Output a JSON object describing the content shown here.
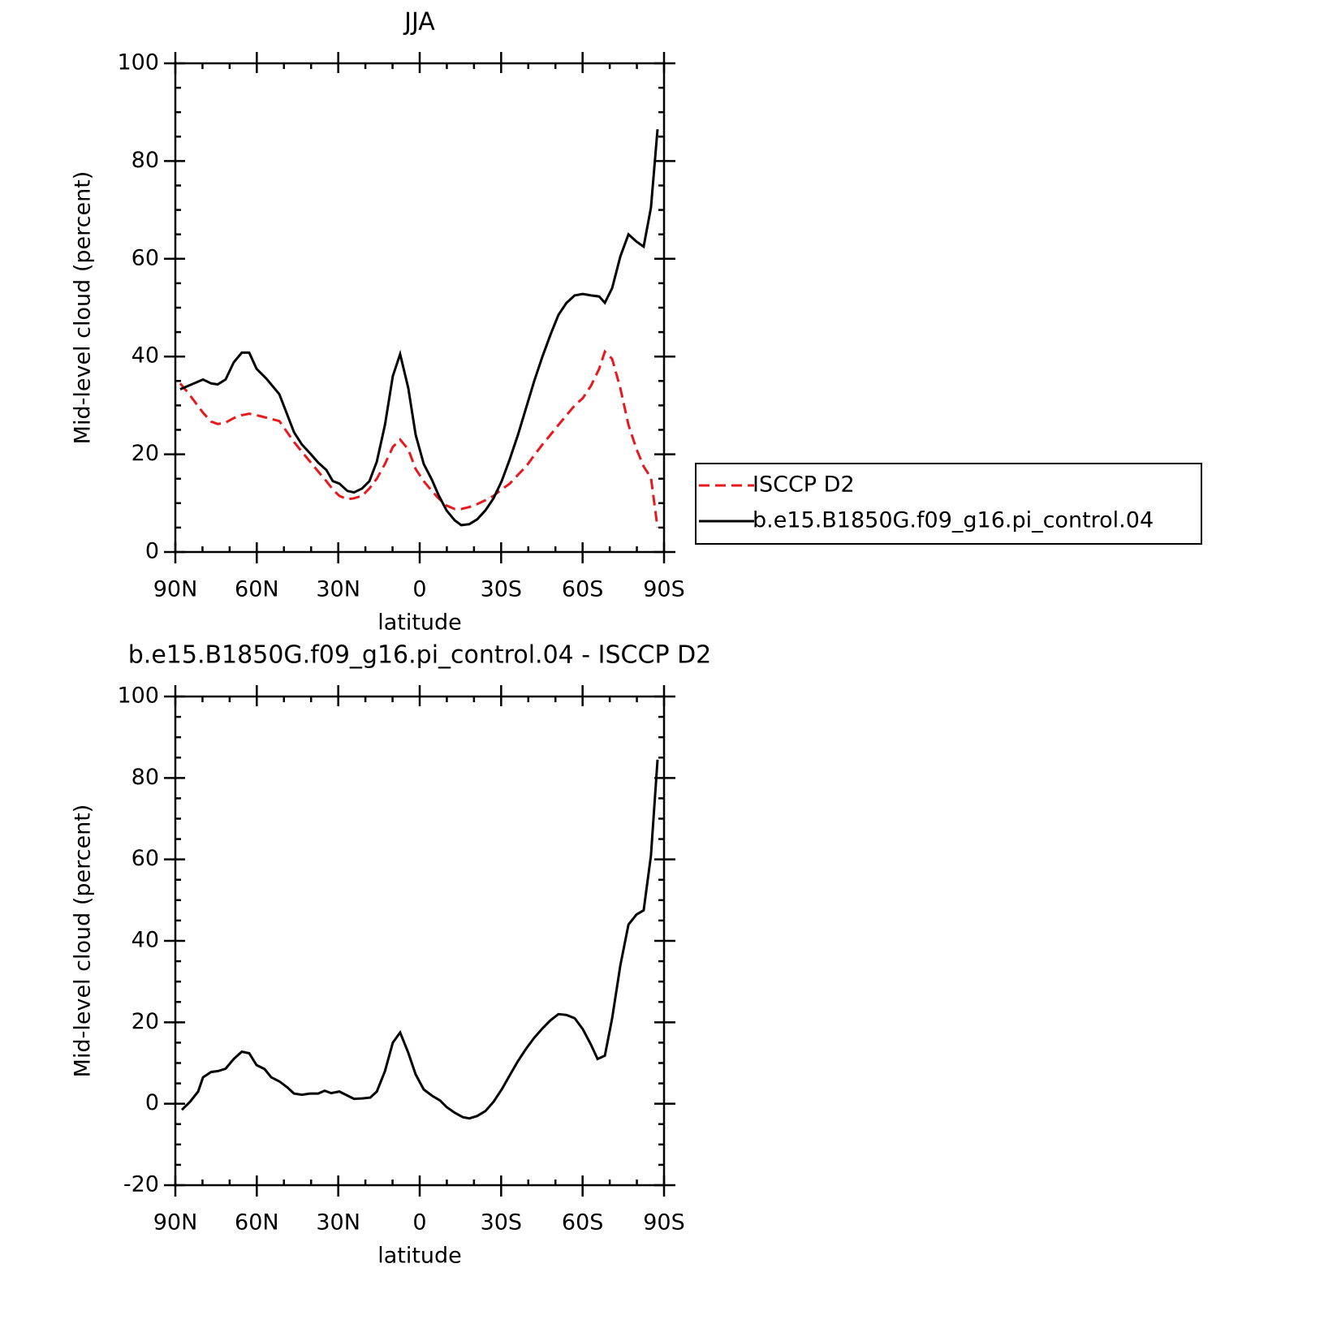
{
  "chart_data": [
    {
      "type": "line",
      "title": "JJA",
      "xlabel": "latitude",
      "ylabel": "Mid-level cloud (percent)",
      "x": [
        88.2,
        85.2,
        79.8,
        76.8,
        74.4,
        71.5,
        68.5,
        65.5,
        62.8,
        60.1,
        56.5,
        51.7,
        46.3,
        43.4,
        40.4,
        37.4,
        34.4,
        32,
        29.6,
        26.6,
        24.2,
        21.2,
        18.5,
        15.8,
        12.8,
        9.9,
        7.2,
        4.2,
        1.5,
        -1.5,
        -4.5,
        -6.9,
        -9.9,
        -12.9,
        -15.3,
        -18.3,
        -21.2,
        -24.2,
        -27.2,
        -30.2,
        -33.2,
        -36.2,
        -39.2,
        -42.2,
        -45.2,
        -48.2,
        -51.1,
        -54.1,
        -57.1,
        -60.1,
        -63.1,
        -66.1,
        -68.2,
        -70.9,
        -73.9,
        -76.9,
        -79.9,
        -82.5,
        -85.2,
        -87.6
      ],
      "series": [
        {
          "name": "ISCCP D2",
          "color": "#e8191c",
          "dashed": true,
          "values": [
            34.5,
            32.5,
            28.5,
            26.7,
            26.2,
            26.5,
            27.4,
            28,
            28.3,
            28,
            27.5,
            26.8,
            22.5,
            20.5,
            18.5,
            16.5,
            14.5,
            12.8,
            11.5,
            10.8,
            11,
            11.5,
            13,
            15,
            18,
            21.5,
            23,
            21,
            17,
            14.5,
            12.5,
            11,
            9.5,
            8.8,
            8.8,
            9.2,
            9.8,
            10.6,
            11.5,
            12.8,
            14,
            15.8,
            17.5,
            19.8,
            22,
            24,
            26,
            28,
            30,
            31.5,
            34,
            37.5,
            41,
            39.5,
            33.5,
            26,
            21,
            17.5,
            15.2,
            5
          ]
        },
        {
          "name": "b.e15.B1850G.f09_g16.pi_control.04",
          "color": "#000000",
          "dashed": false,
          "values": [
            33.3,
            34,
            35.3,
            34.5,
            34.3,
            35.3,
            38.8,
            40.8,
            40.8,
            37.5,
            35.5,
            32.3,
            24.5,
            22,
            20.2,
            18.3,
            16.8,
            14.5,
            14,
            12.5,
            12.2,
            13,
            14.5,
            18.5,
            26,
            36,
            40.5,
            33.5,
            24,
            18,
            14.8,
            11.7,
            8.5,
            6.5,
            5.5,
            5.7,
            6.7,
            8.5,
            11,
            14.5,
            19,
            24,
            29.5,
            35,
            40,
            44.5,
            48.5,
            51,
            52.5,
            52.8,
            52.5,
            52.3,
            51,
            54,
            60.5,
            65,
            63.5,
            62.5,
            70.5,
            86.5
          ]
        }
      ],
      "xlim": [
        90,
        -90
      ],
      "xticks": [
        {
          "value": 90,
          "label": "90N"
        },
        {
          "value": 60,
          "label": "60N"
        },
        {
          "value": 30,
          "label": "30N"
        },
        0,
        {
          "value": -30,
          "label": "30S"
        },
        {
          "value": -60,
          "label": "60S"
        },
        {
          "value": -90,
          "label": "90S"
        }
      ],
      "ylim": [
        0,
        100
      ],
      "yticks": [
        0,
        20,
        40,
        60,
        80,
        100
      ],
      "legend": "outside right"
    },
    {
      "type": "line",
      "title": "b.e15.B1850G.f09_g16.pi_control.04 - ISCCP D2",
      "xlabel": "latitude",
      "ylabel": "Mid-level cloud (percent)",
      "x": [
        87.6,
        84.6,
        81.6,
        79.8,
        76.8,
        74.4,
        71.5,
        68.5,
        65.5,
        62.8,
        60.1,
        57.1,
        54.7,
        51.7,
        48.7,
        46.3,
        43.4,
        40.4,
        37.4,
        35,
        32.6,
        29.6,
        26.6,
        24.2,
        21.2,
        18.2,
        15.8,
        12.8,
        9.9,
        7.2,
        4.2,
        1.5,
        -1.5,
        -4.5,
        -7.5,
        -9.9,
        -12.9,
        -15.9,
        -18.3,
        -21.2,
        -24.2,
        -27.2,
        -30.2,
        -33.2,
        -36.2,
        -39.2,
        -42.2,
        -45.2,
        -48.2,
        -51.1,
        -54.1,
        -57.1,
        -60.1,
        -63.1,
        -65.5,
        -68.2,
        -70.9,
        -73.9,
        -76.9,
        -79.9,
        -82.5,
        -85.2,
        -87.6
      ],
      "series": [
        {
          "color": "#000000",
          "dashed": false,
          "values": [
            -1.5,
            0.5,
            3,
            6.5,
            7.8,
            8,
            8.6,
            11,
            12.8,
            12.4,
            9.5,
            8.5,
            6.5,
            5.5,
            4,
            2.5,
            2.2,
            2.5,
            2.5,
            3.2,
            2.6,
            3,
            2,
            1.2,
            1.3,
            1.5,
            3,
            8,
            15,
            17.5,
            12.5,
            7.2,
            3.5,
            2,
            0.8,
            -0.8,
            -2.2,
            -3.3,
            -3.6,
            -3,
            -1.8,
            0.5,
            3.5,
            7,
            10.5,
            13.5,
            16.2,
            18.5,
            20.5,
            22,
            21.8,
            21,
            18.3,
            14.5,
            11,
            11.8,
            21,
            34,
            44,
            46.5,
            47.5,
            61,
            84.5
          ]
        }
      ],
      "xlim": [
        90,
        -90
      ],
      "xticks": [
        {
          "value": 90,
          "label": "90N"
        },
        {
          "value": 60,
          "label": "60N"
        },
        {
          "value": 30,
          "label": "30N"
        },
        0,
        {
          "value": -30,
          "label": "30S"
        },
        {
          "value": -60,
          "label": "60S"
        },
        {
          "value": -90,
          "label": "90S"
        }
      ],
      "ylim": [
        -20,
        100
      ],
      "yticks": [
        -20,
        0,
        20,
        40,
        60,
        80,
        100
      ]
    }
  ]
}
